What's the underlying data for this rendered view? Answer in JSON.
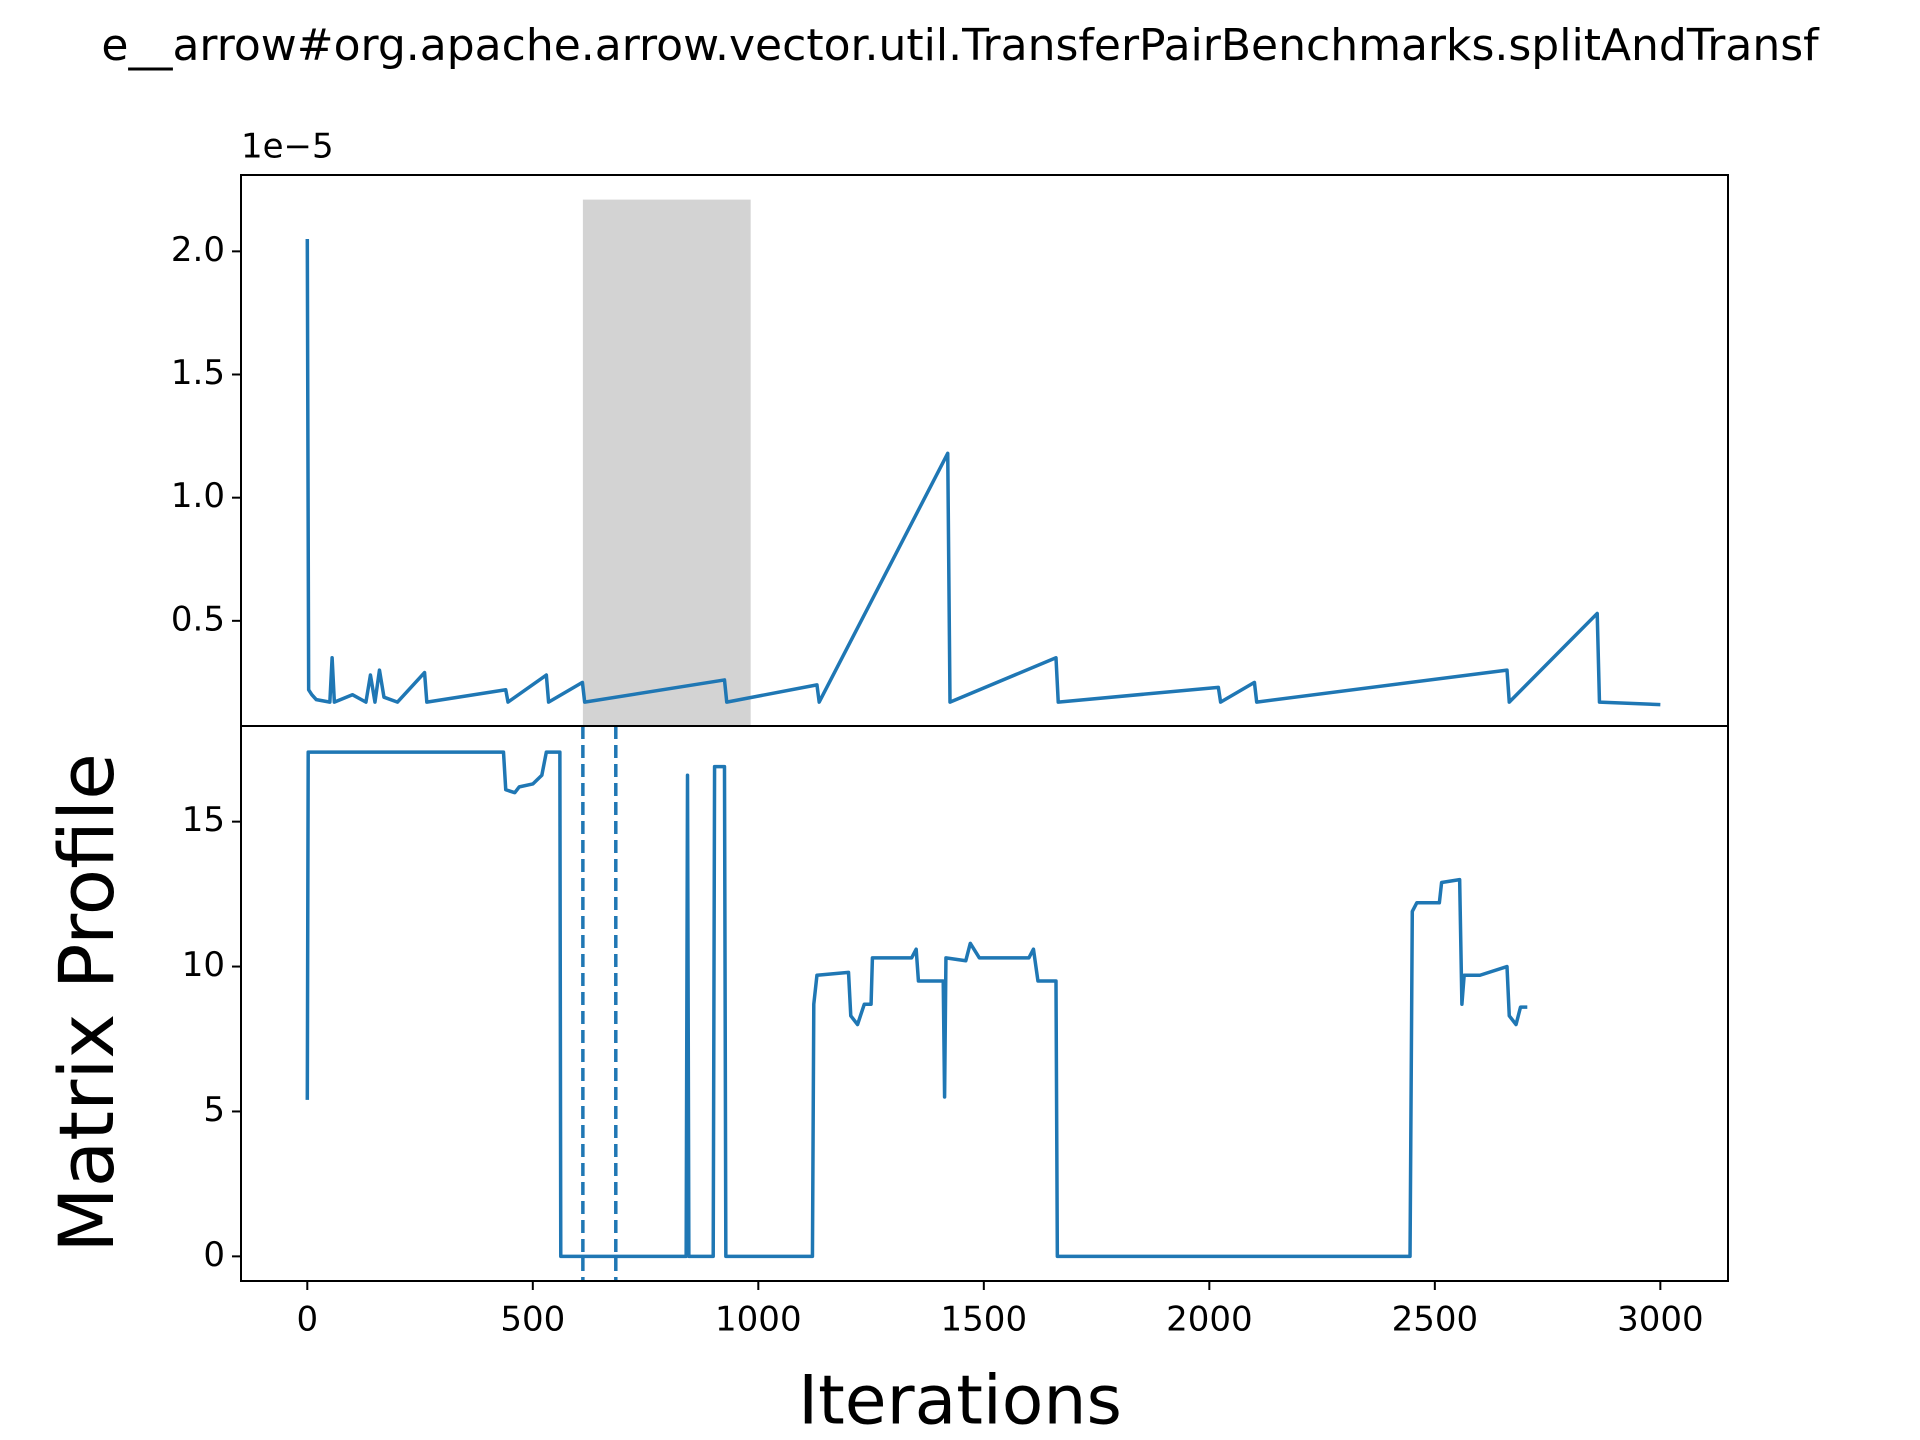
{
  "chart_data": [
    {
      "type": "line",
      "title": "e__arrow#org.apache.arrow.vector.util.TransferPairBenchmarks.splitAndTransf",
      "offset_label": "1e−5",
      "xlim": [
        -147,
        3150
      ],
      "ylim": [
        0.073,
        2.31
      ],
      "yticks": [
        0.5,
        {
          "value": 1,
          "label": "1.0"
        },
        1.5,
        {
          "value": 2,
          "label": "2.0"
        }
      ],
      "span_x": [
        611,
        983
      ],
      "span_top": 2.21,
      "span_color": "#d3d3d3",
      "series": [
        {
          "color": "#1f77b4",
          "x": [
            0,
            3,
            10,
            20,
            50,
            55,
            60,
            100,
            130,
            140,
            150,
            160,
            170,
            200,
            260,
            265,
            440,
            445,
            530,
            535,
            610,
            615,
            925,
            930,
            1130,
            1135,
            1420,
            1425,
            1660,
            1665,
            2020,
            2025,
            2100,
            2105,
            2660,
            2665,
            2860,
            2865,
            3000
          ],
          "values": [
            2.05,
            0.22,
            0.2,
            0.18,
            0.17,
            0.35,
            0.17,
            0.2,
            0.17,
            0.28,
            0.17,
            0.3,
            0.19,
            0.17,
            0.29,
            0.17,
            0.22,
            0.17,
            0.28,
            0.17,
            0.25,
            0.17,
            0.26,
            0.17,
            0.24,
            0.17,
            1.18,
            0.17,
            0.35,
            0.17,
            0.23,
            0.17,
            0.25,
            0.17,
            0.3,
            0.17,
            0.53,
            0.17,
            0.16
          ]
        }
      ]
    },
    {
      "type": "line",
      "xlabel": "Iterations",
      "ylabel": "Matrix Profile",
      "xlim": [
        -147,
        3150
      ],
      "ylim": [
        -0.85,
        18.3
      ],
      "xticks": [
        0,
        500,
        1000,
        1500,
        2000,
        2500,
        3000
      ],
      "yticks": [
        0,
        5,
        10,
        15
      ],
      "vlines": [
        611,
        684
      ],
      "vline_color": "#1f77b4",
      "series": [
        {
          "color": "#1f77b4",
          "x": [
            0,
            2,
            435,
            440,
            460,
            470,
            500,
            520,
            530,
            560,
            562,
            840,
            843,
            846,
            900,
            903,
            925,
            928,
            1120,
            1123,
            1130,
            1200,
            1205,
            1220,
            1235,
            1250,
            1253,
            1340,
            1350,
            1355,
            1410,
            1413,
            1416,
            1460,
            1470,
            1490,
            1600,
            1610,
            1620,
            1660,
            1663,
            2445,
            2450,
            2460,
            2510,
            2515,
            2555,
            2560,
            2565,
            2600,
            2660,
            2665,
            2680,
            2690,
            2705
          ],
          "values": [
            5.4,
            17.4,
            17.4,
            16.1,
            16.0,
            16.2,
            16.3,
            16.6,
            17.4,
            17.4,
            0,
            0,
            16.6,
            0,
            0,
            16.9,
            16.9,
            0,
            0,
            8.7,
            9.7,
            9.8,
            8.3,
            8.0,
            8.7,
            8.7,
            10.3,
            10.3,
            10.6,
            9.5,
            9.5,
            5.5,
            10.3,
            10.2,
            10.8,
            10.3,
            10.3,
            10.6,
            9.5,
            9.5,
            0,
            0,
            11.9,
            12.2,
            12.2,
            12.9,
            13.0,
            8.7,
            9.7,
            9.7,
            10.0,
            8.3,
            8.0,
            8.6,
            8.6
          ]
        }
      ]
    }
  ]
}
